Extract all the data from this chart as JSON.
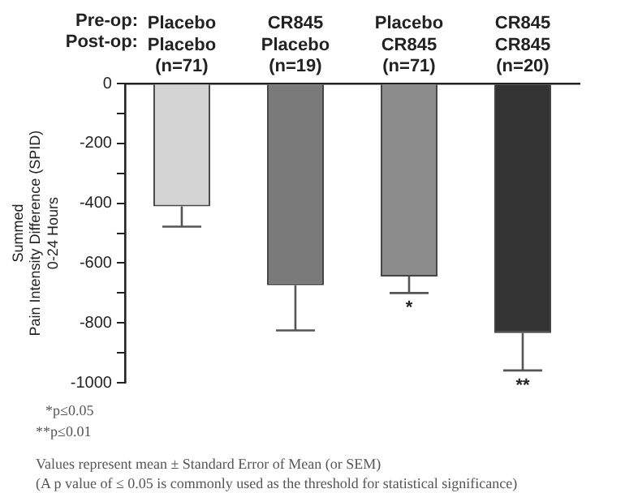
{
  "chart_data": {
    "type": "bar",
    "ylabel": "Summed\nPain Intensity Difference (SPID)\n0-24 Hours",
    "categories": [
      "Placebo\nPlacebo\n(n=71)",
      "CR845\nPlacebo\n(n=19)",
      "Placebo\nCR845\n(n=71)",
      "CR845\nCR845\n(n=20)"
    ],
    "values": [
      -410,
      -674,
      -645,
      -834
    ],
    "errors": [
      [
        -478,
        -410
      ],
      [
        -825,
        -674
      ],
      [
        -700,
        -645
      ],
      [
        -959,
        -834
      ]
    ],
    "colors": [
      "#d4d4d4",
      "#7a7a7a",
      "#8c8c8c",
      "#333333"
    ],
    "ylim": [
      -1000,
      0
    ],
    "yticks": [
      0,
      {
        "value": -100,
        "label": null
      },
      -200,
      {
        "value": -300,
        "label": null
      },
      -400,
      {
        "value": -500,
        "label": null
      },
      -600,
      {
        "value": -700,
        "label": null
      },
      -800,
      {
        "value": -900,
        "label": null
      },
      -1000
    ],
    "grid": false,
    "legend": false,
    "annotations": [
      "Pre-op:",
      "Post-op:",
      {
        "text": "*",
        "x": "Placebo\nCR845\n(n=71)",
        "y": -700
      },
      {
        "text": "**",
        "x": "CR845\nCR845\n(n=20)",
        "y": -959
      },
      "*p≤0.05",
      "**p≤0.01",
      "Values represent mean ± Standard Error of Mean (or SEM)",
      "(A p value of ≤ 0.05 is commonly used as the threshold for statistical significance)"
    ]
  }
}
